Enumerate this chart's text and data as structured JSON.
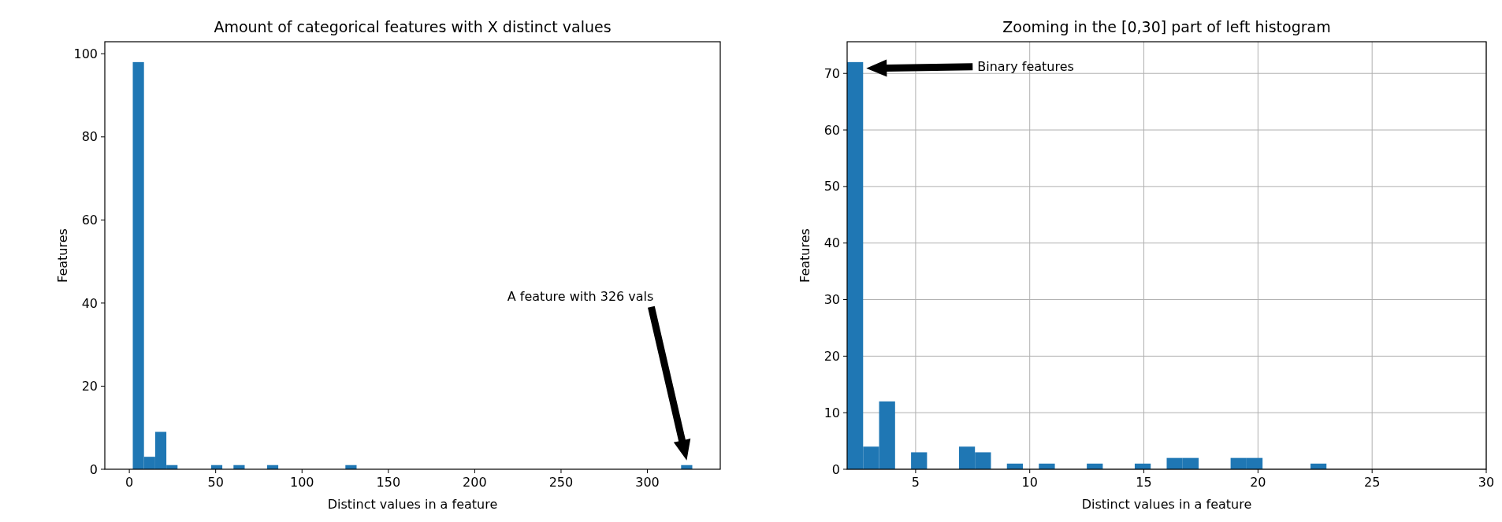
{
  "chart_data": [
    {
      "type": "histogram",
      "title": "Amount of categorical features with X distinct values",
      "xlabel": "Distinct values in a feature",
      "ylabel": "Features",
      "color": "#1f77b4",
      "bins": [
        2,
        8.48,
        14.96,
        21.44,
        27.92,
        34.4,
        40.88,
        47.36,
        53.84,
        60.32,
        66.8,
        73.28,
        79.76,
        86.24,
        92.72,
        99.2,
        105.68,
        112.16,
        118.64,
        125.12,
        131.6,
        138.08,
        144.56,
        151.04,
        157.52,
        164,
        170.48,
        176.96,
        183.44,
        189.92,
        196.4,
        202.88,
        209.36,
        215.84,
        222.32,
        228.8,
        235.28,
        241.76,
        248.24,
        254.72,
        261.2,
        267.68,
        274.16,
        280.64,
        287.12,
        293.6,
        300.08,
        306.56,
        313.04,
        319.52,
        326
      ],
      "values": [
        98,
        3,
        9,
        1,
        0,
        0,
        0,
        1,
        0,
        1,
        0,
        0,
        1,
        0,
        0,
        0,
        0,
        0,
        0,
        1,
        0,
        0,
        0,
        0,
        0,
        0,
        0,
        0,
        0,
        0,
        0,
        0,
        0,
        0,
        0,
        0,
        0,
        0,
        0,
        0,
        0,
        0,
        0,
        0,
        0,
        0,
        0,
        0,
        0,
        1
      ],
      "xlim": [
        -14.2,
        342.2
      ],
      "xticks": [
        0,
        50,
        100,
        150,
        200,
        250,
        300
      ],
      "ylim": [
        0,
        102.9
      ],
      "yticks": [
        0,
        20,
        40,
        60,
        80,
        100
      ],
      "grid": false,
      "annotations": [
        "A feature with 326 vals"
      ]
    },
    {
      "type": "histogram",
      "title": "Zooming in the [0,30] part of left histogram",
      "xlabel": "Distinct values in a feature",
      "ylabel": "Features",
      "color": "#1f77b4",
      "bins": [
        2,
        2.7,
        3.4,
        4.1,
        4.8,
        5.5,
        6.2,
        6.9,
        7.6,
        8.3,
        9,
        9.7,
        10.4,
        11.1,
        11.8,
        12.5,
        13.2,
        13.9,
        14.6,
        15.3,
        16,
        16.7,
        17.4,
        18.1,
        18.8,
        19.5,
        20.2,
        20.9,
        21.6,
        22.3,
        23,
        23.7,
        24.4,
        25.1,
        25.8,
        26.5,
        27.2,
        27.9,
        28.6,
        29.3,
        30
      ],
      "values": [
        72,
        4,
        12,
        0,
        3,
        0,
        0,
        4,
        3,
        0,
        1,
        0,
        1,
        0,
        0,
        1,
        0,
        0,
        1,
        0,
        2,
        2,
        0,
        0,
        2,
        2,
        0,
        0,
        0,
        1,
        0,
        0,
        0,
        0,
        0,
        0,
        0,
        0,
        0,
        0
      ],
      "xlim": [
        2,
        30
      ],
      "xticks": [
        5,
        10,
        15,
        20,
        25,
        30
      ],
      "ylim": [
        0,
        75.6
      ],
      "yticks": [
        0,
        10,
        20,
        30,
        40,
        50,
        60,
        70
      ],
      "grid": true,
      "annotations": [
        "Binary features"
      ]
    }
  ]
}
